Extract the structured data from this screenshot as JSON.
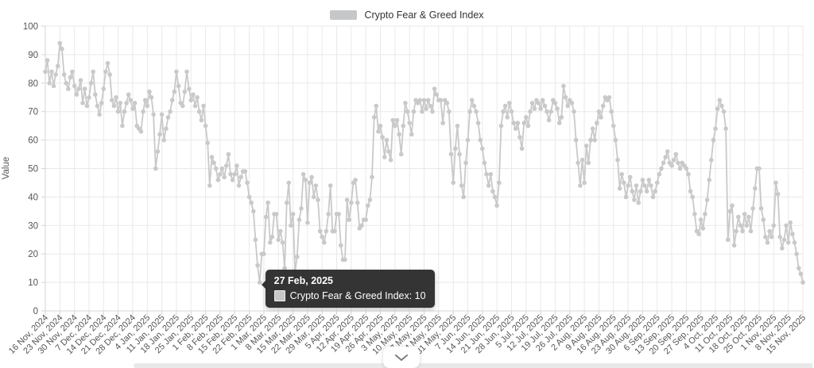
{
  "legend": {
    "label": "Crypto Fear & Greed Index",
    "swatch_color": "#c5c7c9"
  },
  "y_axis": {
    "title": "Value",
    "ticks": [
      0,
      10,
      20,
      30,
      40,
      50,
      60,
      70,
      80,
      90,
      100
    ]
  },
  "tooltip": {
    "date": "27 Feb, 2025",
    "series": "Crypto Fear & Greed Index",
    "value": 10,
    "text": "Crypto Fear & Greed Index: 10",
    "day_index": 103
  },
  "controls": {
    "collapse_button_icon": "chevron-down-icon",
    "scrollbar": "horizontal-scrollbar"
  },
  "colors": {
    "line": "#c9c9c9",
    "point": "#c9c9c9",
    "grid": "#e9e9e9",
    "axis": "#d4d4d4",
    "tick_text": "#555555",
    "legend_text": "#333333",
    "tooltip_bg": "#2c2c2c"
  },
  "chart_data": {
    "type": "line",
    "title": "",
    "series_name": "Crypto Fear & Greed Index",
    "xlabel": "",
    "ylabel": "Value",
    "ylim": [
      0,
      100
    ],
    "grid": true,
    "legend_position": "top-center",
    "start_date": "16 Nov, 2024",
    "end_date": "15 Nov, 2025",
    "x_tick_labels": [
      "16 Nov, 2024",
      "23 Nov, 2024",
      "30 Nov, 2024",
      "7 Dec, 2024",
      "14 Dec, 2024",
      "21 Dec, 2024",
      "28 Dec, 2024",
      "4 Jan, 2025",
      "11 Jan, 2025",
      "18 Jan, 2025",
      "25 Jan, 2025",
      "1 Feb, 2025",
      "8 Feb, 2025",
      "15 Feb, 2025",
      "22 Feb, 2025",
      "1 Mar, 2025",
      "8 Mar, 2025",
      "15 Mar, 2025",
      "22 Mar, 2025",
      "29 Mar, 2025",
      "5 Apr, 2025",
      "12 Apr, 2025",
      "19 Apr, 2025",
      "26 Apr, 2025",
      "3 May, 2025",
      "10 May, 2025",
      "17 May, 2025",
      "24 May, 2025",
      "31 May, 2025",
      "7 Jun, 2025",
      "14 Jun, 2025",
      "21 Jun, 2025",
      "28 Jun, 2025",
      "5 Jul, 2025",
      "12 Jul, 2025",
      "19 Jul, 2025",
      "26 Jul, 2025",
      "2 Aug, 2025",
      "9 Aug, 2025",
      "16 Aug, 2025",
      "23 Aug, 2025",
      "30 Aug, 2025",
      "6 Sep, 2025",
      "13 Sep, 2025",
      "20 Sep, 2025",
      "27 Sep, 2025",
      "4 Oct, 2025",
      "11 Oct, 2025",
      "18 Oct, 2025",
      "25 Oct, 2025",
      "1 Nov, 2025",
      "8 Nov, 2025",
      "15 Nov, 2025"
    ],
    "values": [
      84,
      88,
      80,
      84,
      79,
      83,
      86,
      94,
      92,
      83,
      80,
      78,
      82,
      84,
      79,
      76,
      78,
      81,
      73,
      78,
      72,
      75,
      80,
      84,
      76,
      72,
      69,
      73,
      78,
      84,
      87,
      83,
      74,
      72,
      75,
      70,
      73,
      65,
      70,
      73,
      76,
      74,
      71,
      73,
      65,
      64,
      63,
      70,
      74,
      72,
      77,
      75,
      69,
      50,
      56,
      62,
      69,
      60,
      64,
      68,
      70,
      74,
      77,
      84,
      79,
      73,
      72,
      77,
      84,
      78,
      74,
      76,
      72,
      75,
      70,
      67,
      72,
      65,
      59,
      44,
      54,
      52,
      50,
      46,
      48,
      50,
      47,
      51,
      55,
      48,
      46,
      48,
      51,
      44,
      47,
      49,
      49,
      45,
      40,
      38,
      35,
      25,
      16,
      10,
      20,
      20,
      33,
      38,
      24,
      26,
      34,
      34,
      25,
      28,
      24,
      15,
      38,
      45,
      30,
      34,
      14,
      19,
      32,
      36,
      48,
      46,
      31,
      45,
      47,
      40,
      44,
      39,
      28,
      26,
      24,
      28,
      34,
      44,
      28,
      28,
      34,
      34,
      23,
      18,
      18,
      39,
      32,
      38,
      45,
      46,
      38,
      29,
      30,
      32,
      32,
      37,
      39,
      47,
      68,
      72,
      63,
      65,
      61,
      54,
      60,
      56,
      53,
      67,
      65,
      67,
      62,
      55,
      65,
      73,
      70,
      66,
      62,
      70,
      74,
      73,
      74,
      70,
      74,
      71,
      74,
      72,
      70,
      78,
      76,
      74,
      74,
      66,
      74,
      73,
      70,
      55,
      45,
      57,
      65,
      55,
      44,
      40,
      52,
      60,
      70,
      74,
      72,
      70,
      66,
      60,
      57,
      52,
      48,
      44,
      48,
      42,
      40,
      37,
      45,
      65,
      70,
      72,
      68,
      73,
      70,
      66,
      64,
      66,
      61,
      57,
      66,
      68,
      65,
      70,
      73,
      71,
      74,
      73,
      71,
      74,
      72,
      70,
      67,
      70,
      74,
      73,
      71,
      66,
      68,
      79,
      75,
      72,
      74,
      73,
      70,
      60,
      52,
      44,
      53,
      45,
      58,
      52,
      60,
      64,
      60,
      66,
      70,
      68,
      72,
      75,
      74,
      75,
      70,
      65,
      60,
      53,
      43,
      48,
      45,
      40,
      44,
      47,
      42,
      39,
      44,
      38,
      42,
      46,
      44,
      42,
      46,
      44,
      40,
      42,
      45,
      48,
      50,
      52,
      54,
      56,
      52,
      51,
      53,
      55,
      52,
      50,
      52,
      51,
      50,
      48,
      42,
      40,
      34,
      28,
      27,
      32,
      29,
      34,
      39,
      46,
      53,
      60,
      64,
      71,
      74,
      72,
      70,
      64,
      25,
      35,
      37,
      23,
      28,
      33,
      30,
      28,
      34,
      30,
      33,
      28,
      36,
      43,
      50,
      50,
      36,
      32,
      26,
      24,
      28,
      26,
      30,
      45,
      41,
      26,
      22,
      25,
      30,
      24,
      31,
      27,
      24,
      20,
      15,
      13,
      10
    ]
  }
}
